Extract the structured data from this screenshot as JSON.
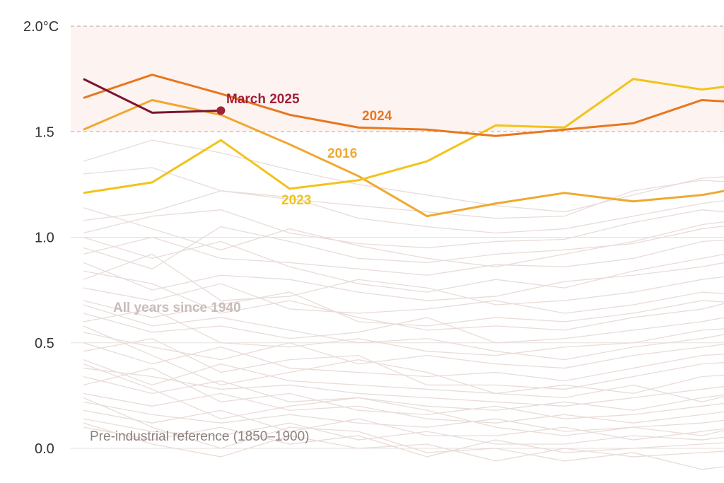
{
  "chart_data": {
    "type": "line",
    "title": "",
    "xlabel": "",
    "ylabel": "",
    "ylim": [
      -0.2,
      2.1
    ],
    "y_ticks": [
      "0.0",
      "0.5",
      "1.0",
      "1.5",
      "2.0°C"
    ],
    "y_tick_values": [
      0,
      0.5,
      1.0,
      1.5,
      2.0
    ],
    "dashed_thresholds": [
      1.5,
      2.0
    ],
    "shaded_band": [
      1.5,
      2.0
    ],
    "x": [
      1,
      2,
      3,
      4,
      5,
      6,
      7,
      8,
      9,
      10,
      11
    ],
    "colors": {
      "2024": "#e8771e",
      "2023": "#f2c319",
      "2016": "#f0a830",
      "2025": "#7a1530",
      "2025_label": "#a01f3a",
      "background": "#e9dcd8",
      "band": "#fdf3f0",
      "background_label": "#c9bcb8",
      "reference_label": "#8e807c"
    },
    "highlight_series": [
      {
        "name": "2024",
        "values": [
          1.66,
          1.77,
          1.68,
          1.58,
          1.52,
          1.51,
          1.48,
          1.51,
          1.54,
          1.65,
          1.63
        ]
      },
      {
        "name": "2023",
        "values": [
          1.21,
          1.26,
          1.46,
          1.23,
          1.27,
          1.36,
          1.53,
          1.52,
          1.75,
          1.7,
          1.74
        ]
      },
      {
        "name": "2016",
        "values": [
          1.51,
          1.65,
          1.58,
          1.44,
          1.29,
          1.1,
          1.16,
          1.21,
          1.17,
          1.2,
          1.26
        ]
      },
      {
        "name": "March 2025",
        "values": [
          1.75,
          1.59,
          1.6
        ]
      }
    ],
    "background_series_label": "All years since 1940",
    "reference_label": "Pre-industrial reference (1850–1900)",
    "background_series": [
      [
        1.36,
        1.46,
        1.4,
        1.32,
        1.25,
        1.2,
        1.15,
        1.12,
        1.2,
        1.28,
        1.3
      ],
      [
        1.3,
        1.33,
        1.22,
        1.18,
        1.15,
        1.12,
        1.09,
        1.1,
        1.22,
        1.27,
        1.25
      ],
      [
        1.08,
        1.12,
        1.22,
        1.19,
        1.09,
        1.05,
        1.02,
        1.04,
        1.1,
        1.16,
        1.2
      ],
      [
        1.02,
        1.1,
        1.13,
        1.02,
        0.97,
        0.95,
        0.98,
        0.99,
        1.07,
        1.13,
        1.1
      ],
      [
        0.95,
        0.85,
        1.05,
        0.98,
        0.9,
        0.88,
        0.92,
        0.94,
        0.97,
        1.04,
        1.08
      ],
      [
        0.92,
        1.0,
        0.9,
        0.88,
        0.85,
        0.82,
        0.87,
        0.86,
        0.9,
        0.98,
        1.0
      ],
      [
        0.88,
        0.75,
        0.82,
        0.8,
        0.74,
        0.7,
        0.72,
        0.79,
        0.82,
        0.86,
        0.92
      ],
      [
        0.8,
        0.92,
        0.7,
        0.72,
        0.8,
        0.76,
        0.68,
        0.7,
        0.74,
        0.8,
        0.84
      ],
      [
        0.76,
        0.7,
        0.78,
        0.66,
        0.64,
        0.66,
        0.7,
        0.64,
        0.68,
        0.74,
        0.72
      ],
      [
        0.7,
        0.62,
        0.68,
        0.74,
        0.6,
        0.58,
        0.62,
        0.6,
        0.64,
        0.7,
        0.68
      ],
      [
        0.64,
        0.55,
        0.58,
        0.52,
        0.55,
        0.62,
        0.5,
        0.52,
        0.56,
        0.6,
        0.66
      ],
      [
        0.6,
        0.66,
        0.5,
        0.48,
        0.52,
        0.46,
        0.44,
        0.48,
        0.5,
        0.56,
        0.58
      ],
      [
        0.55,
        0.48,
        0.42,
        0.5,
        0.4,
        0.44,
        0.4,
        0.38,
        0.44,
        0.48,
        0.52
      ],
      [
        0.5,
        0.4,
        0.48,
        0.38,
        0.36,
        0.34,
        0.36,
        0.32,
        0.38,
        0.44,
        0.46
      ],
      [
        0.46,
        0.52,
        0.36,
        0.42,
        0.44,
        0.3,
        0.3,
        0.28,
        0.34,
        0.4,
        0.42
      ],
      [
        0.42,
        0.3,
        0.4,
        0.32,
        0.3,
        0.28,
        0.26,
        0.3,
        0.26,
        0.34,
        0.36
      ],
      [
        0.38,
        0.34,
        0.28,
        0.3,
        0.26,
        0.24,
        0.22,
        0.2,
        0.24,
        0.28,
        0.32
      ],
      [
        0.34,
        0.26,
        0.32,
        0.22,
        0.24,
        0.2,
        0.18,
        0.22,
        0.18,
        0.24,
        0.28
      ],
      [
        0.3,
        0.38,
        0.22,
        0.26,
        0.18,
        0.16,
        0.2,
        0.14,
        0.16,
        0.2,
        0.24
      ],
      [
        0.26,
        0.2,
        0.26,
        0.18,
        0.2,
        0.14,
        0.12,
        0.16,
        0.12,
        0.16,
        0.2
      ],
      [
        0.22,
        0.16,
        0.12,
        0.16,
        0.12,
        0.1,
        0.14,
        0.08,
        0.1,
        0.12,
        0.16
      ],
      [
        0.18,
        0.12,
        0.18,
        0.08,
        0.14,
        0.06,
        0.06,
        0.1,
        0.04,
        0.08,
        0.12
      ],
      [
        0.14,
        0.08,
        0.06,
        0.12,
        0.04,
        0.08,
        0.02,
        0.02,
        0.06,
        0.04,
        0.08
      ],
      [
        0.1,
        0.04,
        0.1,
        0.02,
        0.06,
        -0.04,
        0.04,
        -0.02,
        0.0,
        0.02,
        0.04
      ],
      [
        0.12,
        0.02,
        -0.04,
        0.06,
        0.0,
        0.02,
        -0.06,
        0.0,
        -0.04,
        -0.02,
        0.0
      ],
      [
        0.24,
        0.1,
        0.0,
        0.1,
        0.08,
        -0.02,
        0.0,
        -0.06,
        -0.02,
        -0.1,
        -0.06
      ],
      [
        0.4,
        0.28,
        0.14,
        0.2,
        0.24,
        0.18,
        0.1,
        0.06,
        0.1,
        0.06,
        0.14
      ],
      [
        0.58,
        0.44,
        0.3,
        0.36,
        0.42,
        0.36,
        0.26,
        0.24,
        0.3,
        0.22,
        0.3
      ],
      [
        0.68,
        0.58,
        0.62,
        0.56,
        0.5,
        0.52,
        0.46,
        0.42,
        0.48,
        0.52,
        0.58
      ],
      [
        0.84,
        0.78,
        0.64,
        0.7,
        0.62,
        0.56,
        0.58,
        0.56,
        0.62,
        0.66,
        0.74
      ],
      [
        1.0,
        0.9,
        0.98,
        0.86,
        0.78,
        0.74,
        0.8,
        0.76,
        0.84,
        0.9,
        0.96
      ],
      [
        1.14,
        1.04,
        0.94,
        1.04,
        0.96,
        0.9,
        0.86,
        0.92,
        0.98,
        1.06,
        1.1
      ]
    ]
  }
}
